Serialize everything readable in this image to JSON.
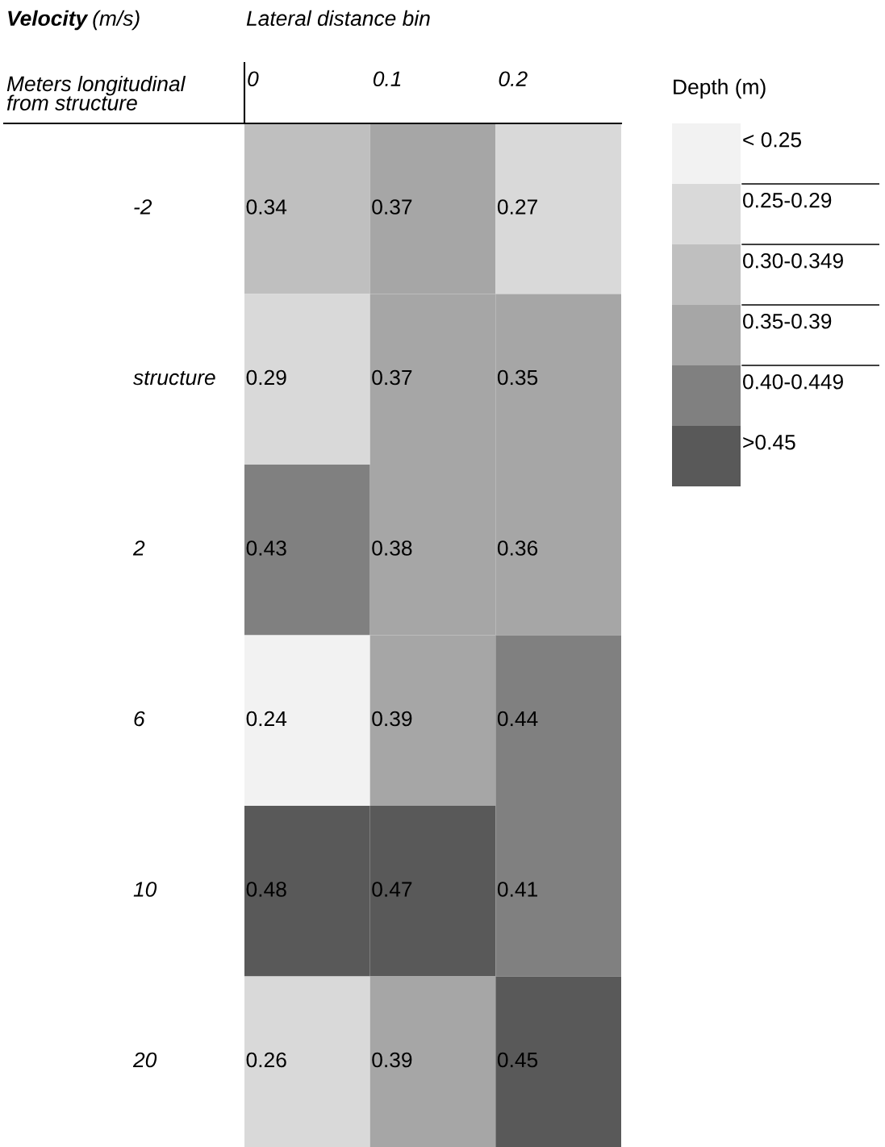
{
  "chart_data": [
    {
      "type": "heatmap",
      "title": "Velocity (m/s)",
      "xlabel": "Lateral distance bin",
      "ylabel": "Meters longitudinal\nfrom structure",
      "categories": [
        "0",
        "0.1",
        "0.2"
      ],
      "y_categories": [
        "-2",
        "structure",
        "2",
        "6",
        "10",
        "20"
      ],
      "cells": [
        [
          0.34,
          0.37,
          0.27
        ],
        [
          0.29,
          0.37,
          0.35
        ],
        [
          0.43,
          0.38,
          0.36
        ],
        [
          0.24,
          0.39,
          0.44
        ],
        [
          0.48,
          0.47,
          0.41
        ],
        [
          0.26,
          0.39,
          0.45
        ]
      ],
      "colors": [
        [
          "#bfbfbf",
          "#a6a6a6",
          "#d9d9d9"
        ],
        [
          "#d9d9d9",
          "#a6a6a6",
          "#a6a6a6"
        ],
        [
          "#808080",
          "#a6a6a6",
          "#a6a6a6"
        ],
        [
          "#f2f2f2",
          "#a6a6a6",
          "#808080"
        ],
        [
          "#595959",
          "#595959",
          "#808080"
        ],
        [
          "#d9d9d9",
          "#a6a6a6",
          "#595959"
        ]
      ],
      "data_labels": true
    },
    {
      "type": "other",
      "title": "Depth (m)",
      "categories": [
        "< 0.25",
        "0.25-0.29",
        "0.30-0.349",
        "0.35-0.39",
        "0.40-0.449",
        ">0.45"
      ],
      "colors": [
        "#f2f2f2",
        "#d9d9d9",
        "#bfbfbf",
        "#a6a6a6",
        "#808080",
        "#595959"
      ]
    }
  ]
}
